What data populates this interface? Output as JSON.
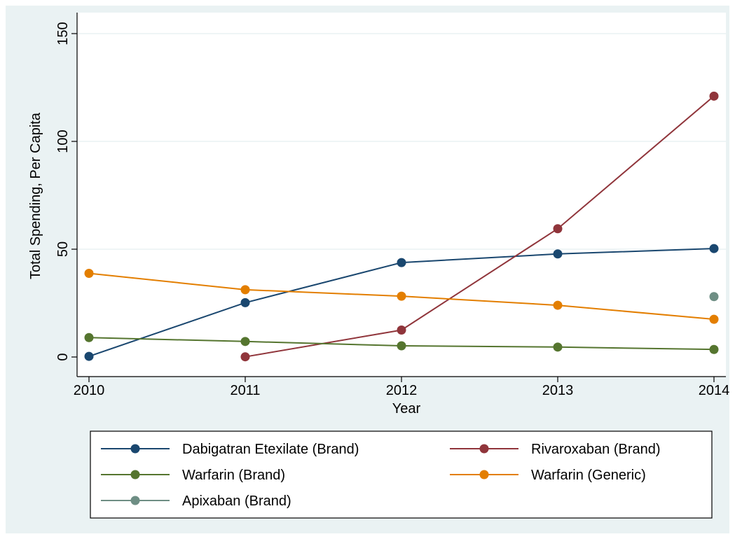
{
  "chart_data": {
    "type": "line",
    "title": "",
    "xlabel": "Year",
    "ylabel": "Total Spending, Per Capita",
    "xlim": [
      2010,
      2014
    ],
    "ylim": [
      0,
      150
    ],
    "x_ticks": [
      2010,
      2011,
      2012,
      2013,
      2014
    ],
    "y_ticks": [
      0,
      50,
      100,
      150
    ],
    "grid": "horizontal",
    "legend_position": "bottom",
    "series": [
      {
        "name": "Dabigatran Etexilate (Brand)",
        "color": "#1a476f",
        "points": [
          [
            2010,
            0.3
          ],
          [
            2011,
            25.2
          ],
          [
            2012,
            43.8
          ],
          [
            2013,
            47.8
          ],
          [
            2014,
            50.3
          ]
        ]
      },
      {
        "name": "Rivaroxaban (Brand)",
        "color": "#90353b",
        "points": [
          [
            2011,
            0.1
          ],
          [
            2012,
            12.5
          ],
          [
            2013,
            59.5
          ],
          [
            2014,
            121.0
          ]
        ]
      },
      {
        "name": "Warfarin (Brand)",
        "color": "#55752f",
        "points": [
          [
            2010,
            9.0
          ],
          [
            2011,
            7.2
          ],
          [
            2012,
            5.2
          ],
          [
            2013,
            4.6
          ],
          [
            2014,
            3.5
          ]
        ]
      },
      {
        "name": "Warfarin (Generic)",
        "color": "#e37e00",
        "points": [
          [
            2010,
            38.8
          ],
          [
            2011,
            31.2
          ],
          [
            2012,
            28.2
          ],
          [
            2013,
            24.0
          ],
          [
            2014,
            17.5
          ]
        ]
      },
      {
        "name": "Apixaban (Brand)",
        "color": "#6e8e84",
        "points": [
          [
            2014,
            28.0
          ]
        ]
      }
    ]
  }
}
